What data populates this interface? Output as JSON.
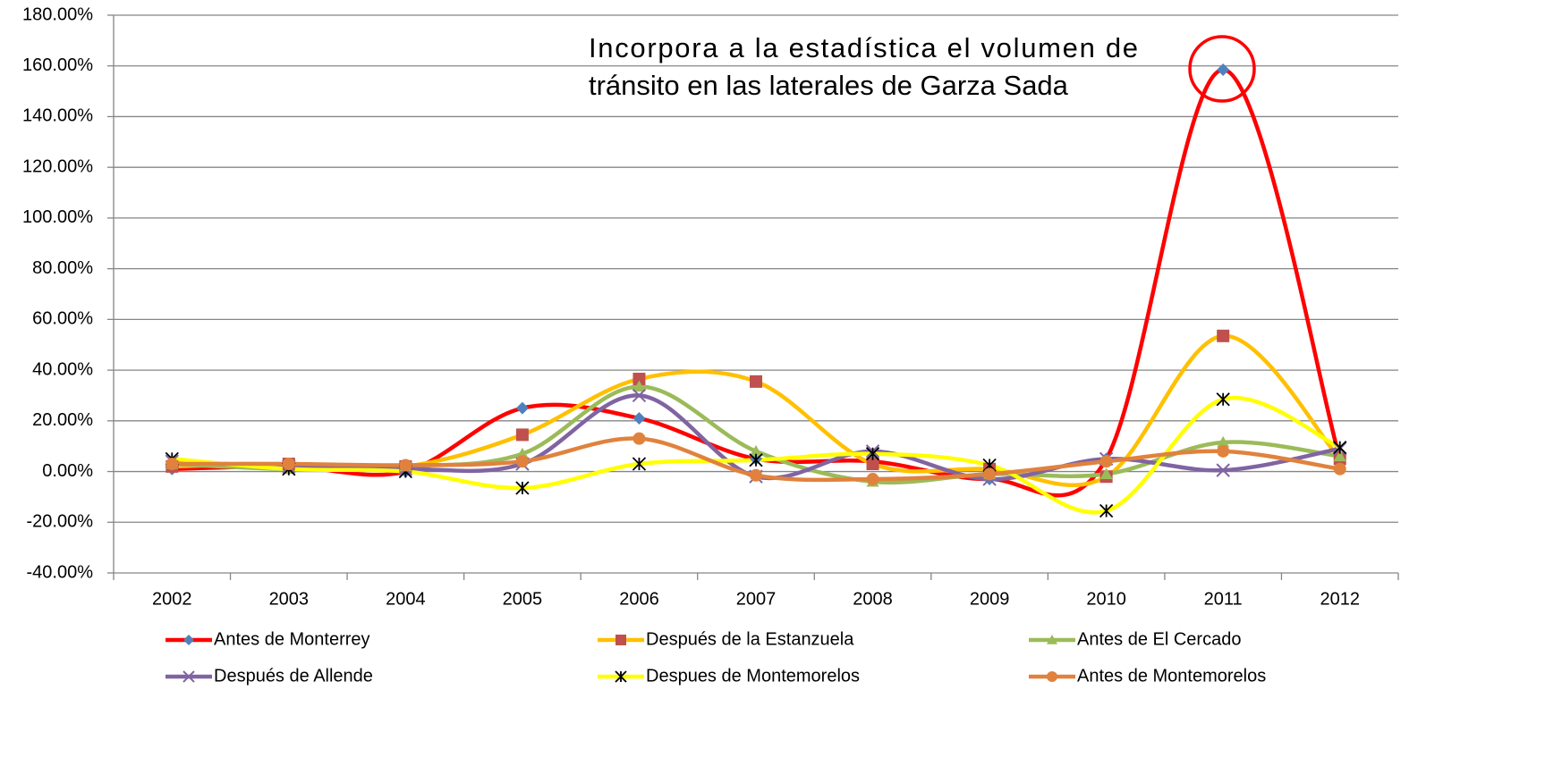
{
  "chart_data": {
    "type": "line",
    "annotation": [
      "Incorpora a la estadística el volumen de",
      "tránsito en las laterales de Garza Sada"
    ],
    "categories": [
      "2002",
      "2003",
      "2004",
      "2005",
      "2006",
      "2007",
      "2008",
      "2009",
      "2010",
      "2011",
      "2012"
    ],
    "series": [
      {
        "name": "Antes de Monterrey",
        "color": "#ff0000",
        "marker_color": "#4f81bd",
        "marker": "diamond",
        "values": [
          1,
          2,
          0,
          25,
          21,
          5,
          4,
          -3,
          5,
          158.5,
          5
        ]
      },
      {
        "name": "Después de la Estanzuela",
        "color": "#ffc000",
        "marker_color": "#c0504d",
        "marker": "square",
        "values": [
          2,
          3,
          2,
          14.5,
          36.5,
          35.5,
          3,
          1,
          -2,
          53.5,
          5
        ]
      },
      {
        "name": "Antes de El Cercado",
        "color": "#9bbb59",
        "marker_color": "#9bbb59",
        "marker": "triangle",
        "values": [
          3,
          1,
          2,
          7,
          33.5,
          8,
          -4,
          -1,
          -1,
          11.5,
          6
        ]
      },
      {
        "name": "Después de Allende",
        "color": "#8064a2",
        "marker_color": "#8064a2",
        "marker": "x",
        "values": [
          4,
          2,
          1,
          3,
          30,
          -2,
          8,
          -3,
          5,
          0.5,
          9
        ]
      },
      {
        "name": "Despues de Montemorelos",
        "color": "#ffff00",
        "marker_color": "#000000",
        "marker": "star",
        "values": [
          5,
          1,
          0,
          -6.5,
          3,
          4.5,
          7,
          2.5,
          -15.5,
          28.5,
          9.5
        ]
      },
      {
        "name": "Antes de Montemorelos",
        "color": "#e0823d",
        "marker_color": "#e0823d",
        "marker": "circle",
        "values": [
          3,
          3,
          2.5,
          4,
          13,
          -1.5,
          -3,
          -1,
          4,
          8,
          1
        ]
      }
    ],
    "ylim": [
      -40,
      180
    ],
    "yticks": [
      {
        "value": -40,
        "label": "-40.00%"
      },
      {
        "value": -20,
        "label": "-20.00%"
      },
      {
        "value": 0,
        "label": "0.00%"
      },
      {
        "value": 20,
        "label": "20.00%"
      },
      {
        "value": 40,
        "label": "40.00%"
      },
      {
        "value": 60,
        "label": "60.00%"
      },
      {
        "value": 80,
        "label": "80.00%"
      },
      {
        "value": 100,
        "label": "100.00%"
      },
      {
        "value": 120,
        "label": "120.00%"
      },
      {
        "value": 140,
        "label": "140.00%"
      },
      {
        "value": 160,
        "label": "160.00%"
      },
      {
        "value": 180,
        "label": "180.00%"
      }
    ],
    "grid": true,
    "smooth": true,
    "legend": "bottom"
  }
}
